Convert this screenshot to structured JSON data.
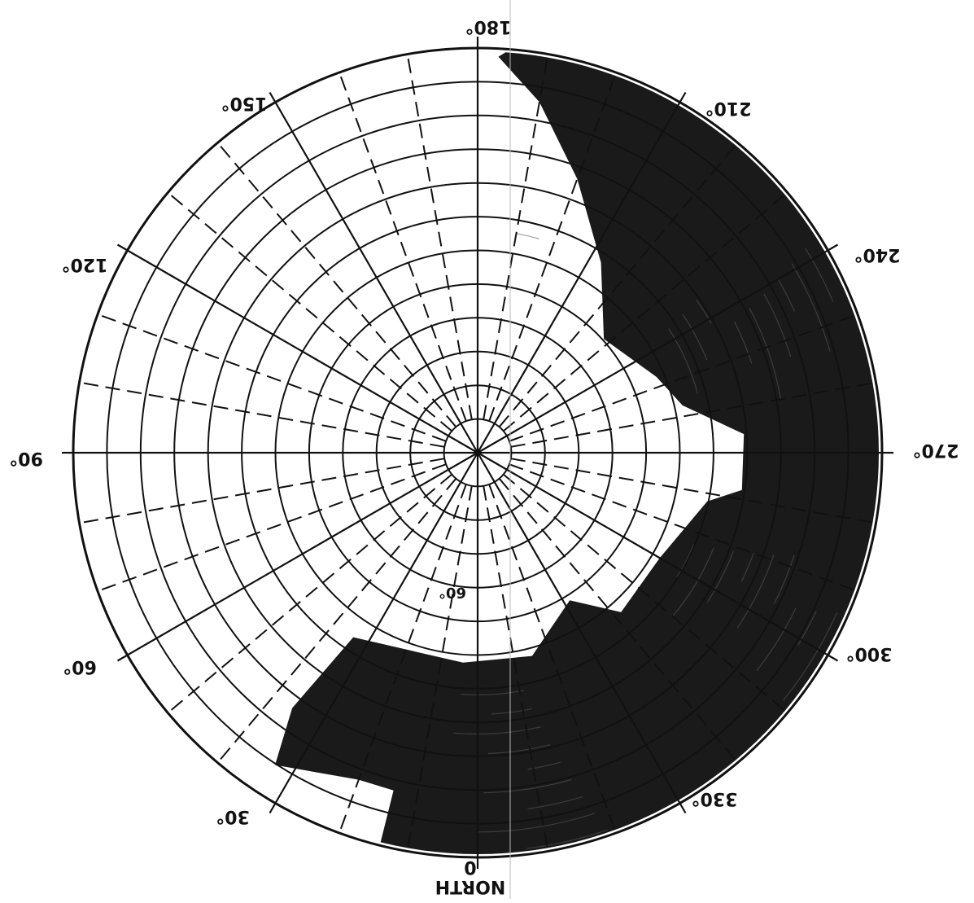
{
  "diagram": {
    "orientation": "rotated-180",
    "rings": {
      "count": 12
    },
    "bearings": {
      "solid_every_deg": 30,
      "dashed_every_deg": 10
    },
    "labels": {
      "north_word": "NORTH",
      "north_deg": "0",
      "deg_30": "30°",
      "deg_60": "60°",
      "deg_90": "90°",
      "deg_120": "120°",
      "deg_150": "150°",
      "deg_180": "180°",
      "deg_210": "210°",
      "deg_240": "240°",
      "deg_270": "270°",
      "deg_300": "300°",
      "deg_330": "330°",
      "inner_60": "60°"
    },
    "shaded_region": {
      "color": "#1a1a1a",
      "outer_ring_fraction": 1.0,
      "boundary": [
        {
          "az": 14,
          "r": 0.86
        },
        {
          "az": 20,
          "r": 0.86
        },
        {
          "az": 33,
          "r": 0.92
        },
        {
          "az": 36,
          "r": 0.78
        },
        {
          "az": 34,
          "r": 0.55
        },
        {
          "az": 4,
          "r": 0.52
        },
        {
          "az": 345,
          "r": 0.52
        },
        {
          "az": 328,
          "r": 0.43
        },
        {
          "az": 318,
          "r": 0.53
        },
        {
          "az": 300,
          "r": 0.52
        },
        {
          "az": 282,
          "r": 0.58
        },
        {
          "az": 278,
          "r": 0.66
        },
        {
          "az": 266,
          "r": 0.66
        },
        {
          "az": 257,
          "r": 0.52
        },
        {
          "az": 247,
          "r": 0.48
        },
        {
          "az": 228,
          "r": 0.42
        },
        {
          "az": 213,
          "r": 0.56
        },
        {
          "az": 200,
          "r": 0.72
        },
        {
          "az": 190,
          "r": 0.88
        },
        {
          "az": 183,
          "r": 0.98
        }
      ]
    }
  }
}
